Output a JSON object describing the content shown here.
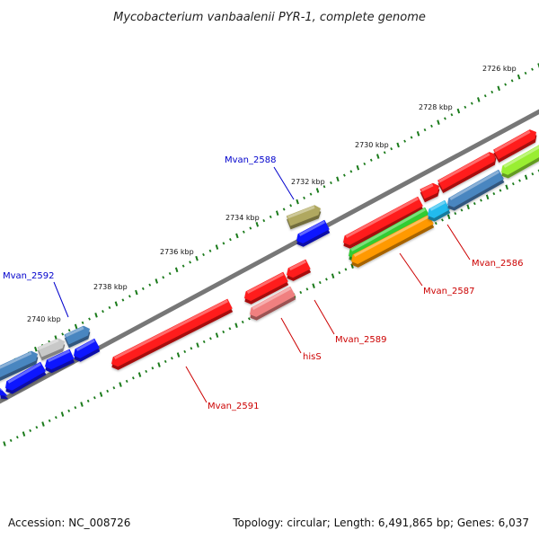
{
  "title": "Mycobacterium vanbaalenii PYR-1, complete genome",
  "footer": {
    "accession": "Accession: NC_008726",
    "topology": "Topology: circular; Length: 6,491,865 bp; Genes: 6,037"
  },
  "colors": {
    "backbone": "#777777",
    "tick": "#1a7a1a",
    "label_blue": "#0000cc",
    "label_red": "#cc0000",
    "gene_red": "#ff1a1a",
    "gene_blue": "#0a12ff",
    "gene_steel": "#4a86c0",
    "gene_olive": "#b0a860",
    "gene_pink": "#f08080",
    "gene_green": "#33cc33",
    "gene_orange": "#ff9900",
    "gene_cyan": "#22bbee",
    "gene_lime": "#99ee33",
    "gene_gray": "#c8c8c8"
  },
  "scale": {
    "unit": "kbp",
    "positions": [
      2726,
      2728,
      2730,
      2732,
      2734,
      2736,
      2738,
      2740
    ],
    "labels": [
      "2726 kbp",
      "2728 kbp",
      "2730 kbp",
      "2732 kbp",
      "2734 kbp",
      "2736 kbp",
      "2738 kbp",
      "2740 kbp"
    ]
  },
  "gene_labels": [
    {
      "name": "Mvan_2588",
      "strand": "outer"
    },
    {
      "name": "Mvan_2592",
      "strand": "outer"
    },
    {
      "name": "Mvan_2586",
      "strand": "inner"
    },
    {
      "name": "Mvan_2587",
      "strand": "inner"
    },
    {
      "name": "Mvan_2589",
      "strand": "inner"
    },
    {
      "name": "hisS",
      "strand": "inner"
    },
    {
      "name": "Mvan_2591",
      "strand": "inner"
    }
  ]
}
